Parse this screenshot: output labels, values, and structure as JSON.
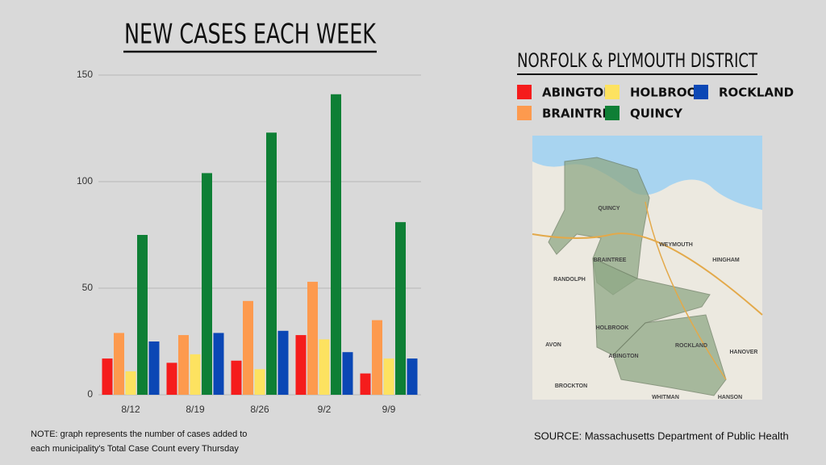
{
  "chart_data": {
    "type": "bar",
    "title": "NEW CASES EACH WEEK",
    "legend_title": "NORFOLK & PLYMOUTH DISTRICT",
    "categories": [
      "8/12",
      "8/19",
      "8/26",
      "9/2",
      "9/9"
    ],
    "series": [
      {
        "name": "ABINGTON",
        "color": "#f51c1c",
        "values": [
          17,
          15,
          16,
          28,
          10
        ]
      },
      {
        "name": "BRAINTREE",
        "color": "#fd9a4e",
        "values": [
          29,
          28,
          44,
          53,
          35
        ]
      },
      {
        "name": "HOLBROOK",
        "color": "#fde260",
        "values": [
          11,
          19,
          12,
          26,
          17
        ]
      },
      {
        "name": "QUINCY",
        "color": "#0e7f35",
        "values": [
          75,
          104,
          123,
          141,
          81
        ]
      },
      {
        "name": "ROCKLAND",
        "color": "#0b47b5",
        "values": [
          25,
          29,
          30,
          20,
          17
        ]
      }
    ],
    "ylim": [
      0,
      150
    ],
    "yticks": [
      0,
      50,
      100,
      150
    ],
    "grid": true
  },
  "map": {
    "labels": [
      "QUINCY",
      "WEYMOUTH",
      "BRAINTREE",
      "RANDOLPH",
      "HINGHAM",
      "HOLBROOK",
      "AVON",
      "ABINGTON",
      "ROCKLAND",
      "HANOVER",
      "BROCKTON",
      "WHITMAN",
      "HANSON"
    ]
  },
  "note": [
    "NOTE: graph represents the number of cases added to",
    "each municipality's Total Case Count every Thursday"
  ],
  "source": "SOURCE: Massachusetts Department of Public Health"
}
